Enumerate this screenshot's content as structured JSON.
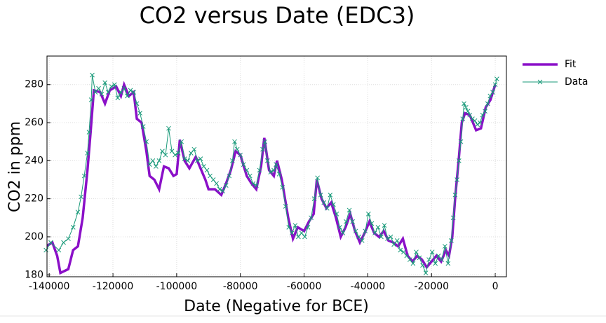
{
  "chart_data": {
    "type": "line",
    "title": "CO2 versus Date (EDC3)",
    "x_label": "Date (Negative for BCE)",
    "y_label": "CO2 in ppm",
    "xlim": [
      -140700,
      3500
    ],
    "ylim": [
      179,
      295
    ],
    "xticks": [
      -140000,
      -120000,
      -100000,
      -80000,
      -60000,
      -40000,
      -20000,
      0
    ],
    "yticks": [
      180,
      200,
      220,
      240,
      260,
      280
    ],
    "grid": true,
    "legend": "outside-top-right",
    "series": [
      {
        "name": "Fit",
        "color": "#8b10c8",
        "marker": "none",
        "x": [
          -141000,
          -139000,
          -137500,
          -136500,
          -134000,
          -132500,
          -131000,
          -129500,
          -128000,
          -127000,
          -126000,
          -124000,
          -122500,
          -121000,
          -119000,
          -117500,
          -116500,
          -115000,
          -113500,
          -112500,
          -111000,
          -109500,
          -108500,
          -107000,
          -105500,
          -104000,
          -102500,
          -101000,
          -100000,
          -99000,
          -97500,
          -96000,
          -94000,
          -92500,
          -91000,
          -90000,
          -88000,
          -86000,
          -84500,
          -83000,
          -81500,
          -80000,
          -78000,
          -76500,
          -75000,
          -73500,
          -72500,
          -71000,
          -69500,
          -68500,
          -67000,
          -65000,
          -63500,
          -62000,
          -60000,
          -58500,
          -57000,
          -56000,
          -54500,
          -53000,
          -51500,
          -50000,
          -48500,
          -47000,
          -45500,
          -44000,
          -42500,
          -41000,
          -39500,
          -38000,
          -36500,
          -35000,
          -33500,
          -32000,
          -30500,
          -29000,
          -27500,
          -26000,
          -24500,
          -23000,
          -21500,
          -20000,
          -18500,
          -17000,
          -15500,
          -14500,
          -13500,
          -12500,
          -11500,
          -10500,
          -9500,
          -8000,
          -6000,
          -4500,
          -3000,
          -1500,
          0
        ],
        "values": [
          195,
          197,
          190,
          181,
          183,
          193,
          195,
          210,
          235,
          255,
          277,
          276,
          270,
          277,
          279,
          274,
          280,
          274,
          276,
          262,
          260,
          245,
          232,
          230,
          225,
          237,
          236,
          232,
          233,
          251,
          240,
          236,
          242,
          236,
          230,
          225,
          225,
          222,
          228,
          235,
          245,
          243,
          232,
          228,
          225,
          237,
          252,
          235,
          232,
          240,
          230,
          210,
          199,
          205,
          203,
          208,
          212,
          230,
          220,
          215,
          218,
          210,
          200,
          205,
          212,
          203,
          197,
          202,
          208,
          202,
          200,
          203,
          198,
          197,
          195,
          199,
          190,
          187,
          190,
          188,
          184,
          187,
          190,
          187,
          193,
          190,
          200,
          222,
          240,
          260,
          265,
          264,
          256,
          257,
          268,
          272,
          280
        ]
      },
      {
        "name": "Data",
        "color": "#1a9a7a",
        "marker": "x",
        "x": [
          -141000,
          -139500,
          -137000,
          -135500,
          -134000,
          -132500,
          -131000,
          -130000,
          -129000,
          -128000,
          -127500,
          -126800,
          -126500,
          -125500,
          -124500,
          -123500,
          -122500,
          -121500,
          -120500,
          -119500,
          -118500,
          -117500,
          -116500,
          -115500,
          -114500,
          -113500,
          -112500,
          -111500,
          -110500,
          -109500,
          -108500,
          -107500,
          -106500,
          -105500,
          -104500,
          -103500,
          -102500,
          -101500,
          -100500,
          -99500,
          -98500,
          -97500,
          -96500,
          -95500,
          -94500,
          -93500,
          -92500,
          -91500,
          -90500,
          -89500,
          -88500,
          -87500,
          -86500,
          -85500,
          -84500,
          -83500,
          -82500,
          -81800,
          -81000,
          -80000,
          -79000,
          -78000,
          -77000,
          -76000,
          -75000,
          -74000,
          -73000,
          -72300,
          -71500,
          -70500,
          -69500,
          -68800,
          -67800,
          -66800,
          -65800,
          -64800,
          -63800,
          -62800,
          -61800,
          -60800,
          -59800,
          -58800,
          -57800,
          -56800,
          -55800,
          -54800,
          -53800,
          -52800,
          -51800,
          -50800,
          -49800,
          -48800,
          -47800,
          -46800,
          -45800,
          -44800,
          -43800,
          -42800,
          -41800,
          -40800,
          -39800,
          -38800,
          -37800,
          -36800,
          -35800,
          -34800,
          -33800,
          -32800,
          -31800,
          -30800,
          -29800,
          -28800,
          -27800,
          -26800,
          -25800,
          -24800,
          -23800,
          -22800,
          -21800,
          -20800,
          -19800,
          -18800,
          -17800,
          -16800,
          -15800,
          -14800,
          -13800,
          -13200,
          -12600,
          -12000,
          -11400,
          -10800,
          -10200,
          -9800,
          -9200,
          -8600,
          -8000,
          -7200,
          -6400,
          -5600,
          -4800,
          -4000,
          -3200,
          -2400,
          -1600,
          -800,
          0,
          500
        ],
        "values": [
          193,
          197,
          193,
          197,
          199,
          205,
          213,
          221,
          232,
          244,
          255,
          272,
          285,
          276,
          278,
          275,
          281,
          276,
          279,
          280,
          273,
          276,
          278,
          274,
          277,
          276,
          270,
          265,
          258,
          250,
          238,
          240,
          237,
          240,
          245,
          243,
          257,
          245,
          243,
          244,
          250,
          241,
          240,
          244,
          246,
          240,
          241,
          237,
          235,
          232,
          230,
          228,
          225,
          224,
          227,
          232,
          240,
          250,
          246,
          243,
          238,
          235,
          232,
          228,
          227,
          235,
          246,
          250,
          240,
          234,
          235,
          238,
          233,
          226,
          216,
          205,
          202,
          206,
          200,
          202,
          200,
          205,
          210,
          220,
          231,
          222,
          218,
          215,
          222,
          217,
          212,
          205,
          202,
          208,
          214,
          208,
          203,
          200,
          198,
          203,
          212,
          207,
          202,
          205,
          200,
          206,
          199,
          200,
          196,
          198,
          193,
          192,
          190,
          188,
          186,
          192,
          189,
          185,
          181,
          188,
          192,
          186,
          190,
          188,
          195,
          186,
          198,
          210,
          222,
          230,
          240,
          250,
          262,
          270,
          268,
          266,
          264,
          262,
          261,
          259,
          260,
          264,
          266,
          270,
          274,
          276,
          280,
          283
        ]
      }
    ]
  }
}
